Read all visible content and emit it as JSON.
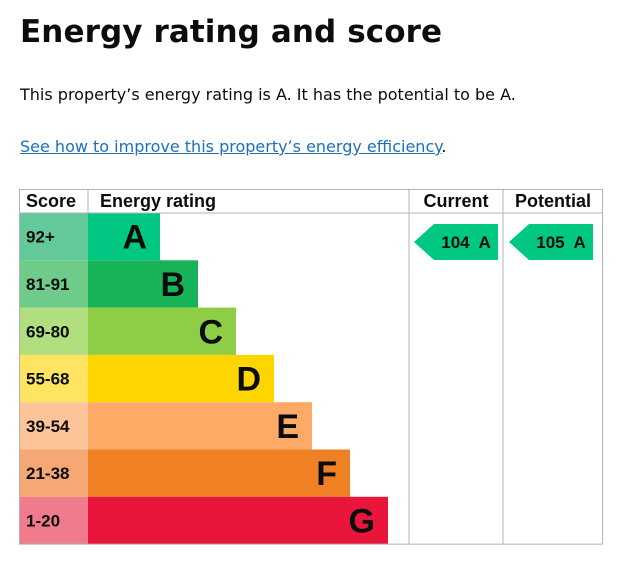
{
  "page": {
    "title": "Energy rating and score",
    "summary": "This property’s energy rating is A. It has the potential to be A.",
    "improve_link": "See how to improve this property’s energy efficiency",
    "improve_suffix": "."
  },
  "chart_data": {
    "type": "table",
    "headers": {
      "score": "Score",
      "rating": "Energy rating",
      "current": "Current",
      "potential": "Potential"
    },
    "bands": [
      {
        "score": "92+",
        "letter": "A",
        "color": "#00c781",
        "score_color": "#64c99a"
      },
      {
        "score": "81-91",
        "letter": "B",
        "color": "#19b459",
        "score_color": "#6fcb89"
      },
      {
        "score": "69-80",
        "letter": "C",
        "color": "#8dce46",
        "score_color": "#b1de7f"
      },
      {
        "score": "55-68",
        "letter": "D",
        "color": "#ffd500",
        "score_color": "#ffe461"
      },
      {
        "score": "39-54",
        "letter": "E",
        "color": "#fcaa65",
        "score_color": "#fdc49a"
      },
      {
        "score": "21-38",
        "letter": "F",
        "color": "#ef8023",
        "score_color": "#f5a874"
      },
      {
        "score": "1-20",
        "letter": "G",
        "color": "#e9153b",
        "score_color": "#f07b8d"
      }
    ],
    "current": {
      "score": 104,
      "rating": "A",
      "label": "104  A",
      "color": "#00c781"
    },
    "potential": {
      "score": 105,
      "rating": "A",
      "label": "105  A",
      "color": "#00c781"
    }
  }
}
